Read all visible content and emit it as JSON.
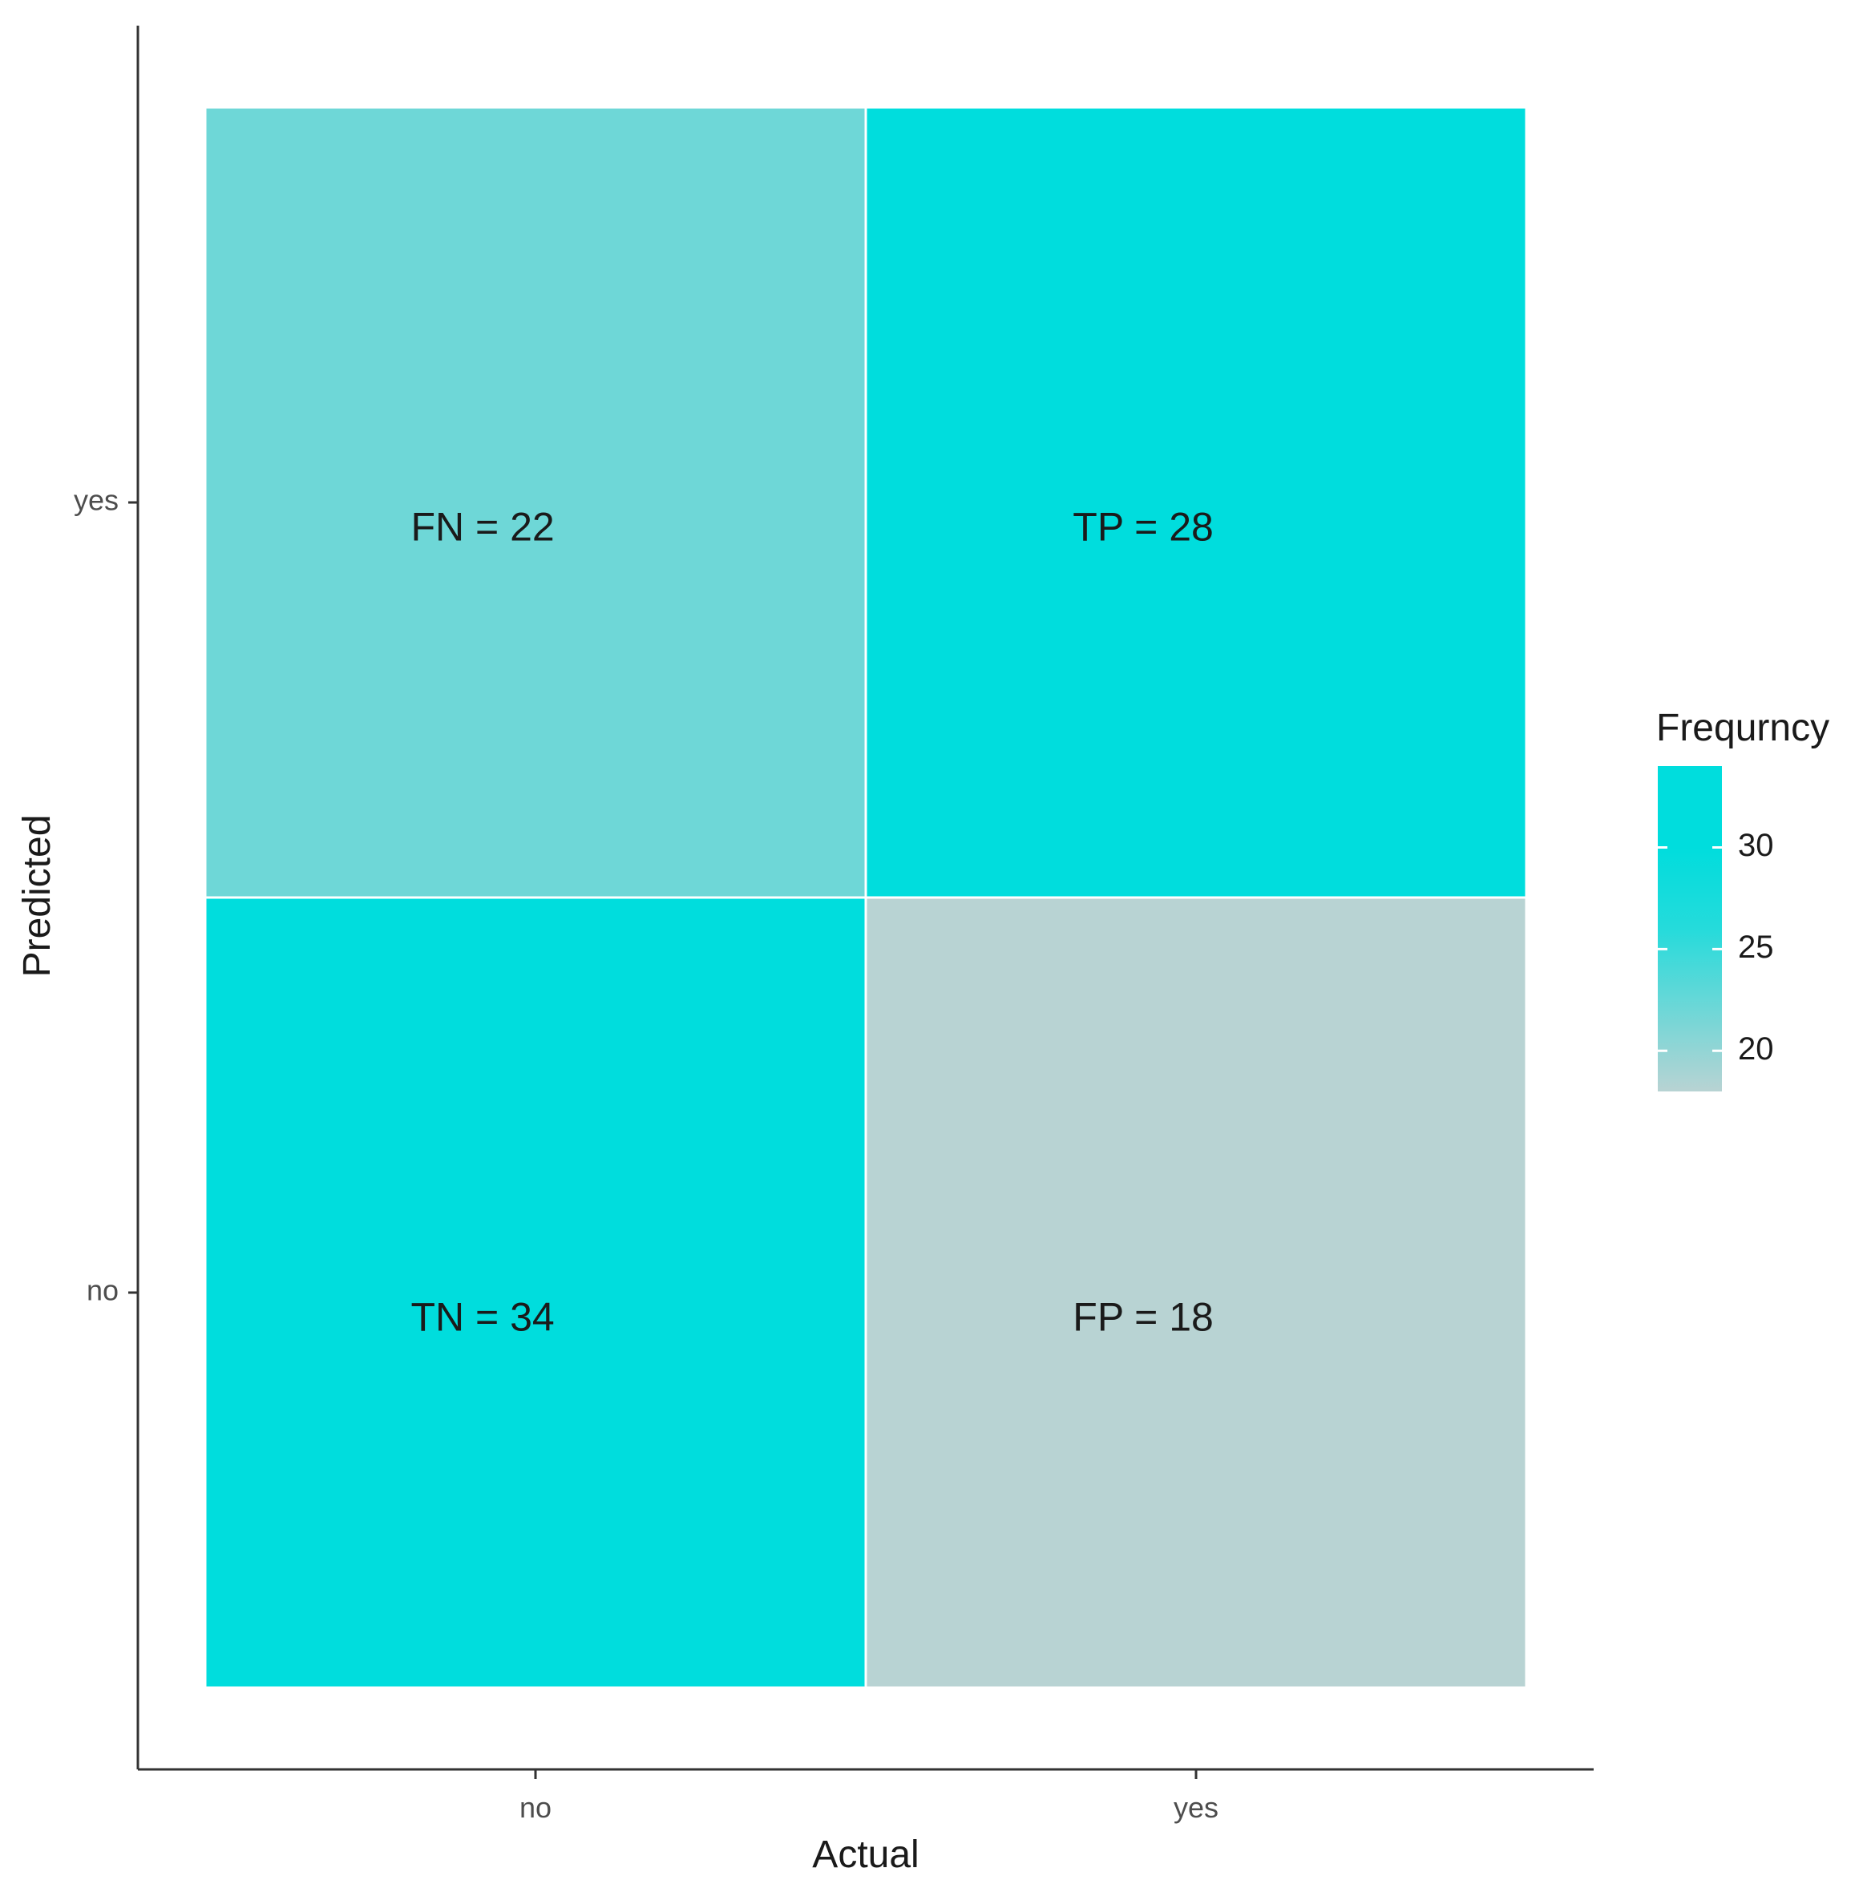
{
  "chart_data": {
    "type": "heatmap",
    "xlabel": "Actual",
    "ylabel": "Predicted",
    "x_categories": [
      "no",
      "yes"
    ],
    "y_categories": [
      "no",
      "yes"
    ],
    "cells": [
      {
        "x": "no",
        "y": "yes",
        "value": 22,
        "label": "FN = 22"
      },
      {
        "x": "yes",
        "y": "yes",
        "value": 28,
        "label": "TP = 28"
      },
      {
        "x": "no",
        "y": "no",
        "value": 34,
        "label": "TN = 34"
      },
      {
        "x": "yes",
        "y": "no",
        "value": 18,
        "label": "FP = 18"
      }
    ],
    "legend": {
      "title": "Frequrncy",
      "ticks": [
        20,
        25,
        30
      ],
      "range": [
        18,
        34
      ],
      "placement": "right"
    },
    "colors": {
      "low": "#b8d3d3",
      "high": "#00dddd",
      "cell_border": "#ffffff",
      "axis_line": "#333333"
    },
    "grid": false
  }
}
